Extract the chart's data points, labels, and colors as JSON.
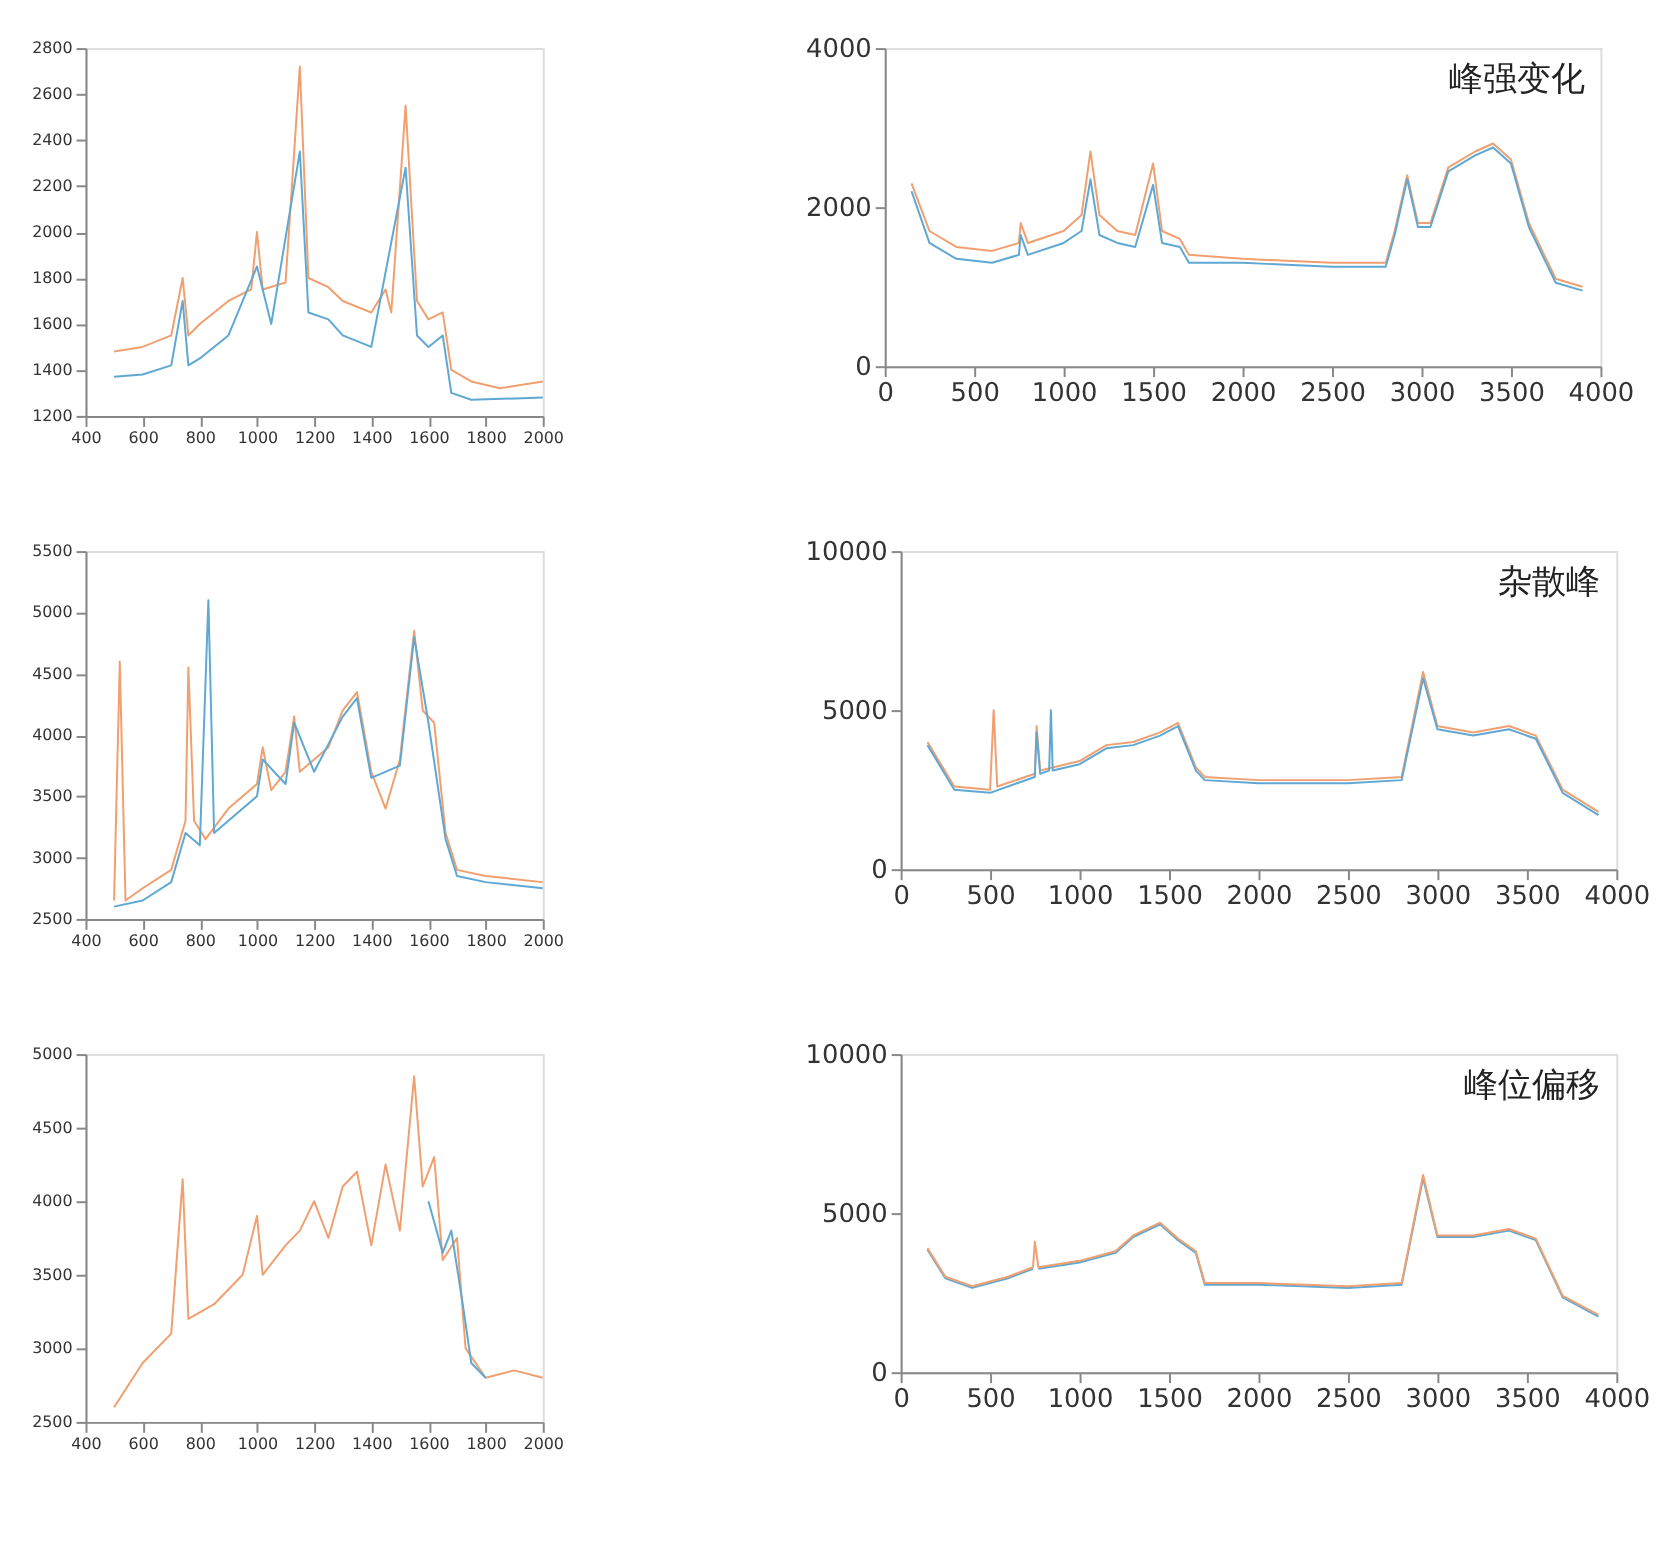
{
  "chart_data": [
    {
      "type": "line",
      "xlim": [
        400,
        2000
      ],
      "xticks": [
        400,
        600,
        800,
        1000,
        1200,
        1400,
        1600,
        1800,
        2000
      ],
      "ylim": [
        1200,
        2800
      ],
      "yticks": [
        1200,
        1400,
        1600,
        1800,
        2000,
        2200,
        2400,
        2600,
        2800
      ],
      "series": [
        {
          "color": "#f0a070",
          "x": [
            500,
            600,
            700,
            740,
            760,
            800,
            900,
            980,
            1000,
            1020,
            1100,
            1150,
            1180,
            1250,
            1300,
            1400,
            1450,
            1470,
            1520,
            1560,
            1600,
            1650,
            1680,
            1750,
            1850,
            2000
          ],
          "values": [
            1480,
            1500,
            1550,
            1800,
            1550,
            1600,
            1700,
            1750,
            2000,
            1750,
            1780,
            2720,
            1800,
            1760,
            1700,
            1650,
            1750,
            1650,
            2550,
            1700,
            1620,
            1650,
            1400,
            1350,
            1320,
            1350
          ]
        },
        {
          "color": "#5fa8d3",
          "x": [
            500,
            600,
            700,
            740,
            760,
            800,
            900,
            1000,
            1050,
            1150,
            1180,
            1250,
            1300,
            1400,
            1520,
            1560,
            1600,
            1650,
            1680,
            1750,
            2000
          ],
          "values": [
            1370,
            1380,
            1420,
            1700,
            1420,
            1450,
            1550,
            1850,
            1600,
            2350,
            1650,
            1620,
            1550,
            1500,
            2280,
            1550,
            1500,
            1550,
            1300,
            1270,
            1280
          ]
        }
      ]
    },
    {
      "type": "line",
      "xlim": [
        0,
        4000
      ],
      "xticks": [
        0,
        500,
        1000,
        1500,
        2000,
        2500,
        3000,
        3500,
        4000
      ],
      "ylim": [
        0,
        4000
      ],
      "yticks": [
        0,
        2000,
        4000
      ],
      "annotations": [
        "峰强变化"
      ],
      "series": [
        {
          "color": "#f0a070",
          "x": [
            150,
            250,
            400,
            600,
            750,
            760,
            800,
            1000,
            1100,
            1150,
            1200,
            1300,
            1400,
            1500,
            1550,
            1650,
            1700,
            2000,
            2500,
            2800,
            2850,
            2920,
            2980,
            3050,
            3150,
            3300,
            3400,
            3500,
            3600,
            3750,
            3900
          ],
          "values": [
            2300,
            1700,
            1500,
            1450,
            1550,
            1800,
            1550,
            1700,
            1900,
            2700,
            1900,
            1700,
            1650,
            2550,
            1700,
            1600,
            1400,
            1350,
            1300,
            1300,
            1700,
            2400,
            1800,
            1800,
            2500,
            2700,
            2800,
            2600,
            1800,
            1100,
            1000
          ]
        },
        {
          "color": "#5fa8d3",
          "x": [
            150,
            250,
            400,
            600,
            750,
            760,
            800,
            1000,
            1100,
            1150,
            1200,
            1300,
            1400,
            1500,
            1550,
            1650,
            1700,
            2000,
            2500,
            2800,
            2850,
            2920,
            2980,
            3050,
            3150,
            3300,
            3400,
            3500,
            3600,
            3750,
            3900
          ],
          "values": [
            2200,
            1550,
            1350,
            1300,
            1400,
            1650,
            1400,
            1550,
            1700,
            2350,
            1650,
            1550,
            1500,
            2280,
            1550,
            1500,
            1300,
            1300,
            1250,
            1250,
            1650,
            2350,
            1750,
            1750,
            2450,
            2650,
            2750,
            2550,
            1750,
            1050,
            950
          ]
        }
      ]
    },
    {
      "type": "line",
      "xlim": [
        400,
        2000
      ],
      "xticks": [
        400,
        600,
        800,
        1000,
        1200,
        1400,
        1600,
        1800,
        2000
      ],
      "ylim": [
        2500,
        5500
      ],
      "yticks": [
        2500,
        3000,
        3500,
        4000,
        4500,
        5000,
        5500
      ],
      "series": [
        {
          "color": "#f0a070",
          "x": [
            500,
            520,
            540,
            600,
            700,
            750,
            760,
            780,
            820,
            900,
            1000,
            1020,
            1050,
            1100,
            1130,
            1150,
            1200,
            1250,
            1300,
            1350,
            1400,
            1450,
            1500,
            1550,
            1580,
            1620,
            1660,
            1700,
            1800,
            2000
          ],
          "values": [
            2650,
            4600,
            2650,
            2750,
            2900,
            3300,
            4550,
            3300,
            3150,
            3400,
            3600,
            3900,
            3550,
            3700,
            4150,
            3700,
            3800,
            3900,
            4200,
            4350,
            3700,
            3400,
            3800,
            4850,
            4200,
            4100,
            3200,
            2900,
            2850,
            2800
          ]
        },
        {
          "color": "#5fa8d3",
          "x": [
            500,
            600,
            700,
            750,
            800,
            830,
            850,
            900,
            1000,
            1020,
            1100,
            1130,
            1200,
            1300,
            1350,
            1400,
            1500,
            1550,
            1600,
            1660,
            1700,
            1800,
            2000
          ],
          "values": [
            2600,
            2650,
            2800,
            3200,
            3100,
            5100,
            3200,
            3300,
            3500,
            3800,
            3600,
            4100,
            3700,
            4150,
            4300,
            3650,
            3750,
            4800,
            4100,
            3150,
            2850,
            2800,
            2750
          ]
        }
      ]
    },
    {
      "type": "line",
      "xlim": [
        0,
        4000
      ],
      "xticks": [
        0,
        500,
        1000,
        1500,
        2000,
        2500,
        3000,
        3500,
        4000
      ],
      "ylim": [
        0,
        10000
      ],
      "yticks": [
        0,
        5000,
        10000
      ],
      "annotations": [
        "杂散峰"
      ],
      "series": [
        {
          "color": "#f0a070",
          "x": [
            150,
            300,
            500,
            520,
            540,
            750,
            760,
            780,
            1000,
            1150,
            1300,
            1450,
            1550,
            1650,
            1700,
            2000,
            2500,
            2800,
            2920,
            3000,
            3200,
            3400,
            3550,
            3700,
            3900
          ],
          "values": [
            4000,
            2600,
            2500,
            5000,
            2600,
            3000,
            4500,
            3100,
            3400,
            3900,
            4000,
            4300,
            4600,
            3200,
            2900,
            2800,
            2800,
            2900,
            6200,
            4500,
            4300,
            4500,
            4200,
            2500,
            1800
          ]
        },
        {
          "color": "#5fa8d3",
          "x": [
            150,
            300,
            500,
            750,
            760,
            780,
            830,
            840,
            850,
            1000,
            1150,
            1300,
            1450,
            1550,
            1650,
            1700,
            2000,
            2500,
            2800,
            2920,
            3000,
            3200,
            3400,
            3550,
            3700,
            3900
          ],
          "values": [
            3900,
            2500,
            2400,
            2900,
            4300,
            3000,
            3100,
            5000,
            3100,
            3300,
            3800,
            3900,
            4200,
            4500,
            3100,
            2800,
            2700,
            2700,
            2800,
            6000,
            4400,
            4200,
            4400,
            4100,
            2400,
            1700
          ]
        }
      ]
    },
    {
      "type": "line",
      "xlim": [
        400,
        2000
      ],
      "xticks": [
        400,
        600,
        800,
        1000,
        1200,
        1400,
        1600,
        1800,
        2000
      ],
      "ylim": [
        2500,
        5000
      ],
      "yticks": [
        2500,
        3000,
        3500,
        4000,
        4500,
        5000
      ],
      "series": [
        {
          "color": "#f0a070",
          "x": [
            500,
            600,
            700,
            740,
            760,
            850,
            950,
            1000,
            1020,
            1100,
            1150,
            1200,
            1250,
            1300,
            1350,
            1400,
            1450,
            1500,
            1550,
            1580,
            1620,
            1650,
            1700,
            1730,
            1800,
            1900,
            2000
          ],
          "values": [
            2600,
            2900,
            3100,
            4150,
            3200,
            3300,
            3500,
            3900,
            3500,
            3700,
            3800,
            4000,
            3750,
            4100,
            4200,
            3700,
            4250,
            3800,
            4850,
            4100,
            4300,
            3600,
            3750,
            3000,
            2800,
            2850,
            2800
          ]
        },
        {
          "color": "#5fa8d3",
          "x": [
            1600,
            1650,
            1680,
            1720,
            1750,
            1800
          ],
          "values": [
            4000,
            3650,
            3800,
            3300,
            2900,
            2800
          ]
        }
      ]
    },
    {
      "type": "line",
      "xlim": [
        0,
        4000
      ],
      "xticks": [
        0,
        500,
        1000,
        1500,
        2000,
        2500,
        3000,
        3500,
        4000
      ],
      "ylim": [
        0,
        10000
      ],
      "yticks": [
        0,
        5000,
        10000
      ],
      "annotations": [
        "峰位偏移"
      ],
      "series": [
        {
          "color": "#5fa8d3",
          "x": [
            150,
            250,
            400,
            600,
            740,
            750,
            770,
            1000,
            1200,
            1300,
            1450,
            1550,
            1650,
            1700,
            2000,
            2500,
            2800,
            2920,
            3000,
            3200,
            3400,
            3550,
            3700,
            3900
          ],
          "values": [
            3850,
            2950,
            2650,
            2950,
            3250,
            null,
            3250,
            3450,
            3750,
            4250,
            4650,
            4150,
            3750,
            2750,
            2750,
            2650,
            2750,
            6100,
            4250,
            4250,
            4450,
            4150,
            2350,
            1750
          ]
        },
        {
          "color": "#f0a070",
          "x": [
            150,
            250,
            400,
            600,
            740,
            750,
            770,
            1000,
            1200,
            1300,
            1450,
            1550,
            1650,
            1700,
            2000,
            2500,
            2800,
            2920,
            3000,
            3200,
            3400,
            3550,
            3700,
            3900
          ],
          "values": [
            3900,
            3000,
            2700,
            3000,
            3300,
            4100,
            3300,
            3500,
            3800,
            4300,
            4700,
            4200,
            3800,
            2800,
            2800,
            2700,
            2800,
            6200,
            4300,
            4300,
            4500,
            4200,
            2400,
            1800
          ]
        }
      ]
    }
  ]
}
